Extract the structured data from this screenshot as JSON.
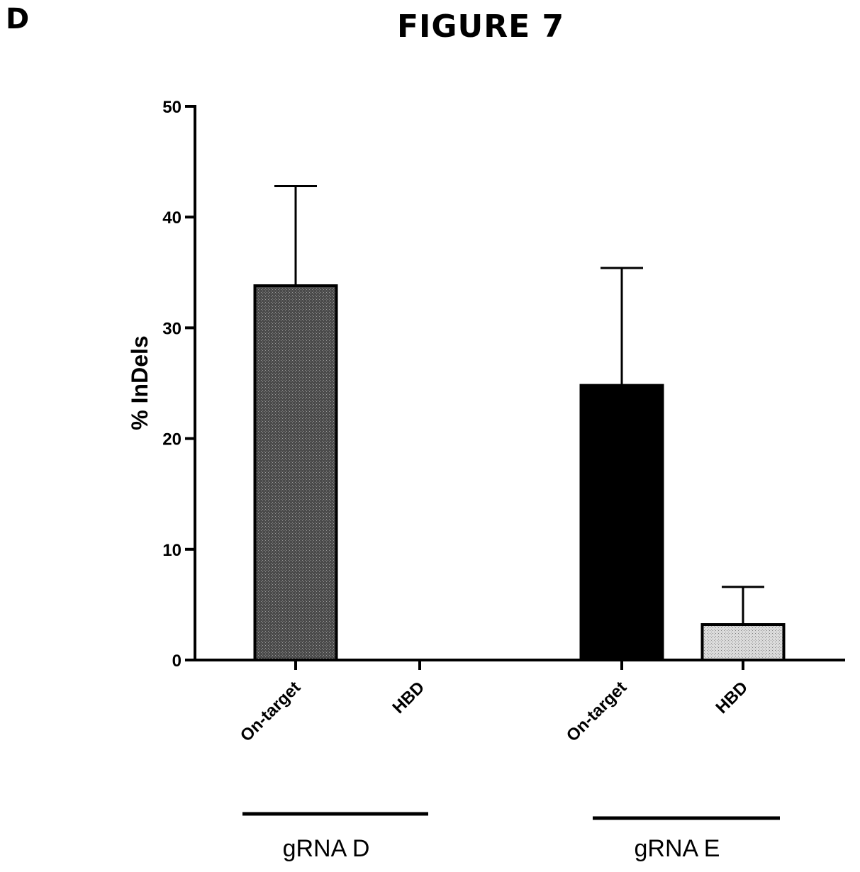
{
  "panel_label": "D",
  "figure_title": "FIGURE 7",
  "chart_data": {
    "type": "bar",
    "title": "",
    "ylabel": "% InDels",
    "xlabel": "",
    "ylim": [
      0,
      50
    ],
    "yticks": [
      0,
      10,
      20,
      30,
      40,
      50
    ],
    "grid": false,
    "categories": [
      "On-target",
      "HBD",
      "On-target",
      "HBD"
    ],
    "values": [
      33.8,
      0,
      24.8,
      3.2
    ],
    "error_upper": [
      42.8,
      0,
      35.4,
      6.6
    ],
    "groups": [
      {
        "label": "gRNA D",
        "categories": [
          "On-target",
          "HBD"
        ]
      },
      {
        "label": "gRNA E",
        "categories": [
          "On-target",
          "HBD"
        ]
      }
    ],
    "colors": [
      "#3a3a3a",
      "#ffffff",
      "#000000",
      "#d4d4d4"
    ]
  }
}
